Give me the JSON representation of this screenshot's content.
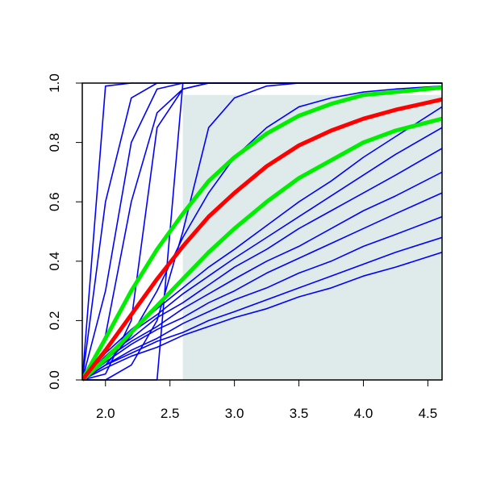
{
  "chart_data": {
    "type": "line",
    "x": [
      1.82,
      2.0,
      2.2,
      2.4,
      2.6,
      2.8,
      3.0,
      3.25,
      3.5,
      3.75,
      4.0,
      4.25,
      4.61
    ],
    "xlim": [
      1.82,
      4.61
    ],
    "ylim": [
      0,
      1
    ],
    "xticks": [
      {
        "value": 2,
        "label": "2.0"
      },
      2.5,
      {
        "value": 3,
        "label": "3.0"
      },
      3.5,
      {
        "value": 4,
        "label": "4.0"
      },
      4.5
    ],
    "yticks": [
      {
        "value": 0,
        "label": "0.0"
      },
      0.2,
      0.4,
      0.6,
      0.8,
      {
        "value": 1,
        "label": "1.0"
      }
    ],
    "shaded_region": {
      "xlim": [
        2.6,
        4.61
      ],
      "ylim": [
        0,
        0.96
      ],
      "color": "#dfeaea"
    },
    "series": [
      {
        "color": "#0000ff",
        "values": [
          0,
          0.99,
          1,
          1,
          1,
          1,
          1,
          1,
          1,
          1,
          1,
          1,
          1
        ]
      },
      {
        "color": "#0000ff",
        "values": [
          0,
          0.6,
          0.95,
          1,
          1,
          1,
          1,
          1,
          1,
          1,
          1,
          1,
          1
        ]
      },
      {
        "color": "#0000ff",
        "values": [
          0,
          0.3,
          0.8,
          0.98,
          1,
          1,
          1,
          1,
          1,
          1,
          1,
          1,
          1
        ]
      },
      {
        "color": "#0000ff",
        "values": [
          0,
          0.15,
          0.6,
          0.9,
          0.98,
          1,
          1,
          1,
          1,
          1,
          1,
          1,
          1
        ]
      },
      {
        "color": "#0000ff",
        "values": [
          0,
          0,
          0,
          0,
          1,
          1,
          1,
          1,
          1,
          1,
          1,
          1,
          1
        ]
      },
      {
        "color": "#0000ff",
        "values": [
          0,
          0.02,
          0.2,
          0.85,
          0.98,
          1,
          1,
          1,
          1,
          1,
          1,
          1,
          1
        ]
      },
      {
        "color": "#0000ff",
        "values": [
          0,
          0,
          0.05,
          0.2,
          0.5,
          0.85,
          0.95,
          0.99,
          1,
          1,
          1,
          1,
          1
        ]
      },
      {
        "color": "#0000ff",
        "values": [
          0,
          0.05,
          0.15,
          0.3,
          0.48,
          0.63,
          0.75,
          0.85,
          0.92,
          0.95,
          0.97,
          0.98,
          0.99
        ]
      },
      {
        "color": "#0000ff",
        "values": [
          0,
          0.09,
          0.17,
          0.24,
          0.31,
          0.38,
          0.44,
          0.52,
          0.6,
          0.67,
          0.75,
          0.82,
          0.92
        ]
      },
      {
        "color": "#0000ff",
        "values": [
          0,
          0.08,
          0.16,
          0.22,
          0.29,
          0.35,
          0.41,
          0.48,
          0.55,
          0.62,
          0.69,
          0.76,
          0.85
        ]
      },
      {
        "color": "#0000ff",
        "values": [
          0,
          0.08,
          0.14,
          0.21,
          0.26,
          0.32,
          0.38,
          0.44,
          0.51,
          0.57,
          0.63,
          0.69,
          0.78
        ]
      },
      {
        "color": "#0000ff",
        "values": [
          0,
          0.07,
          0.13,
          0.18,
          0.24,
          0.29,
          0.34,
          0.4,
          0.45,
          0.51,
          0.57,
          0.62,
          0.7
        ]
      },
      {
        "color": "#0000ff",
        "values": [
          0,
          0.06,
          0.12,
          0.17,
          0.21,
          0.26,
          0.3,
          0.36,
          0.41,
          0.46,
          0.51,
          0.56,
          0.63
        ]
      },
      {
        "color": "#0000ff",
        "values": [
          0,
          0.05,
          0.1,
          0.14,
          0.19,
          0.23,
          0.27,
          0.31,
          0.36,
          0.4,
          0.45,
          0.49,
          0.55
        ]
      },
      {
        "color": "#0000ff",
        "values": [
          0,
          0.05,
          0.09,
          0.13,
          0.16,
          0.2,
          0.23,
          0.27,
          0.31,
          0.35,
          0.39,
          0.43,
          0.48
        ]
      },
      {
        "color": "#0000ff",
        "values": [
          0,
          0.04,
          0.08,
          0.11,
          0.15,
          0.18,
          0.21,
          0.24,
          0.28,
          0.31,
          0.35,
          0.38,
          0.43
        ]
      },
      {
        "color": "#00ee00",
        "values": [
          0,
          0.14,
          0.3,
          0.44,
          0.56,
          0.67,
          0.75,
          0.83,
          0.89,
          0.93,
          0.96,
          0.97,
          0.985
        ]
      },
      {
        "color": "#00ee00",
        "values": [
          0,
          0.07,
          0.16,
          0.25,
          0.34,
          0.43,
          0.51,
          0.6,
          0.68,
          0.74,
          0.8,
          0.84,
          0.88
        ]
      },
      {
        "color": "#ff0000",
        "values": [
          0,
          0.1,
          0.22,
          0.34,
          0.45,
          0.55,
          0.63,
          0.72,
          0.79,
          0.84,
          0.88,
          0.91,
          0.945
        ]
      }
    ]
  }
}
